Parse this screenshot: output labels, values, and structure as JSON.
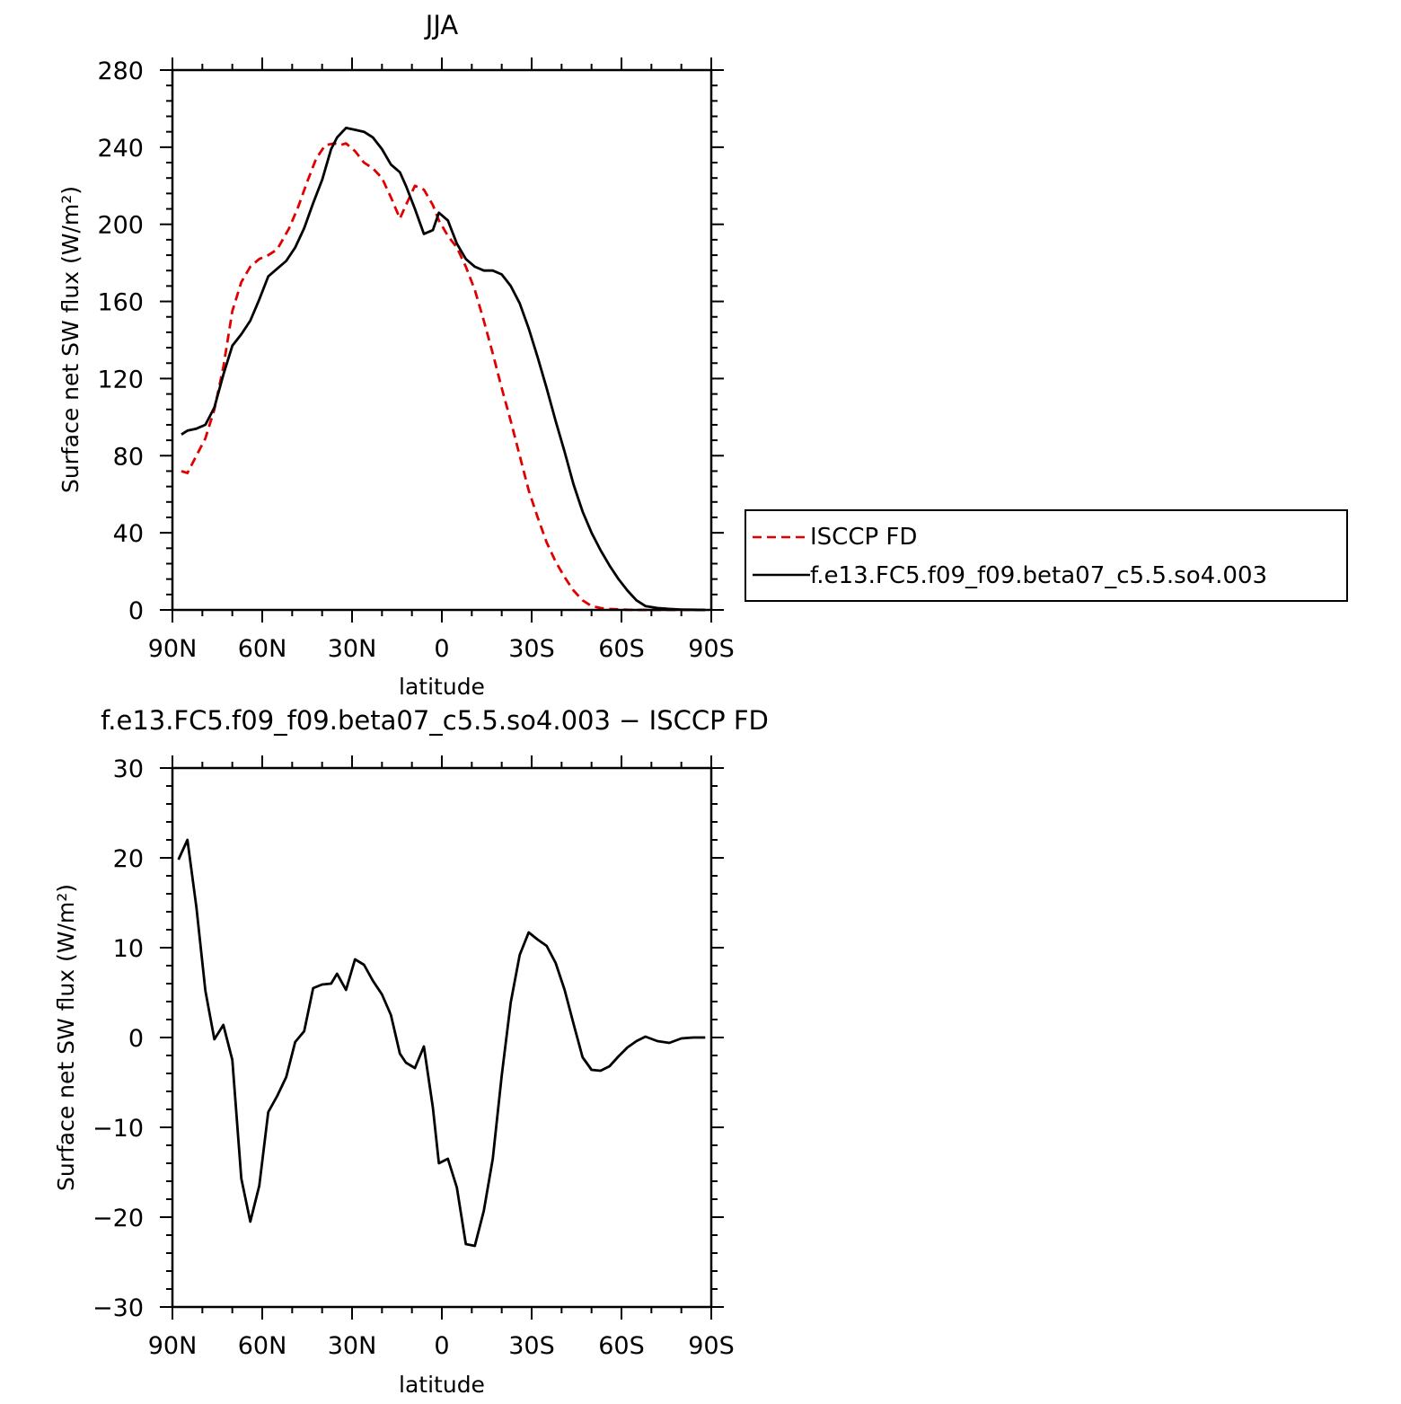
{
  "chart_data": [
    {
      "type": "line",
      "title": "JJA",
      "xlabel": "latitude",
      "ylabel": "Surface net SW flux (W/m²)",
      "x_ticks": [
        {
          "value": 90,
          "label": "90N"
        },
        {
          "value": 60,
          "label": "60N"
        },
        {
          "value": 30,
          "label": "30N"
        },
        {
          "value": 0,
          "label": "0"
        },
        {
          "value": -30,
          "label": "30S"
        },
        {
          "value": -60,
          "label": "60S"
        },
        {
          "value": -90,
          "label": "90S"
        }
      ],
      "y_ticks": [
        {
          "value": 0,
          "label": "0"
        },
        {
          "value": 40,
          "label": "40"
        },
        {
          "value": 80,
          "label": "80"
        },
        {
          "value": 120,
          "label": "120"
        },
        {
          "value": 160,
          "label": "160"
        },
        {
          "value": 200,
          "label": "200"
        },
        {
          "value": 240,
          "label": "240"
        },
        {
          "value": 280,
          "label": "280"
        }
      ],
      "xlim": [
        90,
        -90
      ],
      "ylim": [
        0,
        280
      ],
      "grid": false,
      "legend": "right",
      "series": [
        {
          "name": "ISCCP FD",
          "color": "#e00000",
          "dash": "dashed",
          "x": [
            87,
            85,
            79,
            76,
            73,
            70,
            67,
            64,
            61,
            58,
            55,
            51,
            48,
            45,
            42,
            39,
            36,
            34,
            32,
            29,
            26,
            23,
            20,
            17,
            14,
            12,
            9,
            6,
            3,
            1,
            -2,
            -5,
            -8,
            -11,
            -14,
            -17,
            -20,
            -23,
            -26,
            -29,
            -32,
            -35,
            -38,
            -41,
            -44,
            -47,
            -50,
            -53,
            -56,
            -59,
            -62,
            -65,
            -68,
            -72,
            -76,
            -80,
            -84,
            -88
          ],
          "y": [
            72,
            71,
            89,
            104,
            126,
            155,
            170,
            178,
            182,
            184,
            187,
            198,
            209,
            222,
            234,
            241,
            242,
            241,
            242,
            238,
            232,
            229,
            224,
            214,
            203,
            210,
            220,
            218,
            210,
            202,
            194,
            188,
            178,
            166,
            150,
            133,
            115,
            98,
            80,
            62,
            48,
            35,
            25,
            17,
            10,
            5,
            2,
            1,
            0.5,
            0.3,
            0.1,
            0.05,
            0.02,
            0,
            0,
            0,
            0,
            0
          ]
        },
        {
          "name": "f.e13.FC5.f09_f09.beta07_c5.5.so4.003",
          "color": "#000000",
          "dash": "solid",
          "x": [
            87,
            85,
            82,
            79,
            76,
            73,
            70,
            67,
            64,
            61,
            58,
            55,
            52,
            49,
            46,
            43,
            40,
            37,
            35,
            32,
            29,
            26,
            23,
            20,
            17,
            14,
            12,
            9,
            6,
            3,
            1,
            -2,
            -5,
            -8,
            -11,
            -14,
            -17,
            -20,
            -23,
            -26,
            -29,
            -32,
            -35,
            -38,
            -41,
            -44,
            -47,
            -50,
            -53,
            -56,
            -59,
            -62,
            -65,
            -68,
            -72,
            -76,
            -80,
            -84,
            -88
          ],
          "y": [
            91,
            93,
            94,
            96,
            105,
            122,
            137,
            143,
            150,
            161,
            173,
            177,
            181,
            188,
            198,
            211,
            223,
            239,
            245,
            250,
            249,
            248,
            245,
            239,
            231,
            227,
            220,
            208,
            195,
            197,
            206,
            202,
            190,
            182,
            178,
            176,
            176,
            174,
            168,
            159,
            146,
            131,
            115,
            98,
            82,
            65,
            51,
            40,
            31,
            23,
            16,
            10,
            5,
            2,
            1,
            0.5,
            0.2,
            0.1,
            0
          ]
        }
      ]
    },
    {
      "type": "line",
      "title": "f.e13.FC5.f09_f09.beta07_c5.5.so4.003 − ISCCP FD",
      "xlabel": "latitude",
      "ylabel": "Surface net SW flux (W/m²)",
      "x_ticks": [
        {
          "value": 90,
          "label": "90N"
        },
        {
          "value": 60,
          "label": "60N"
        },
        {
          "value": 30,
          "label": "30N"
        },
        {
          "value": 0,
          "label": "0"
        },
        {
          "value": -30,
          "label": "30S"
        },
        {
          "value": -60,
          "label": "60S"
        },
        {
          "value": -90,
          "label": "90S"
        }
      ],
      "y_ticks": [
        {
          "value": -30,
          "label": "−30"
        },
        {
          "value": -20,
          "label": "−20"
        },
        {
          "value": -10,
          "label": "−10"
        },
        {
          "value": 0,
          "label": "0"
        },
        {
          "value": 10,
          "label": "10"
        },
        {
          "value": 20,
          "label": "20"
        },
        {
          "value": 30,
          "label": "30"
        }
      ],
      "xlim": [
        90,
        -90
      ],
      "ylim": [
        -30,
        30
      ],
      "grid": false,
      "series": [
        {
          "color": "#000000",
          "dash": "solid",
          "x": [
            88,
            85,
            82,
            79,
            76,
            73,
            70,
            67,
            64,
            61,
            58,
            55,
            52,
            49,
            46,
            43,
            40,
            37,
            35,
            32,
            29,
            26,
            23,
            20,
            17,
            14,
            12,
            9,
            6,
            3,
            1,
            -2,
            -5,
            -8,
            -11,
            -14,
            -17,
            -20,
            -23,
            -26,
            -29,
            -32,
            -35,
            -38,
            -41,
            -44,
            -47,
            -50,
            -53,
            -56,
            -59,
            -62,
            -65,
            -68,
            -72,
            -76,
            -80,
            -84,
            -88
          ],
          "y": [
            19.8,
            22,
            14.5,
            5.2,
            -0.2,
            1.4,
            -2.5,
            -15.7,
            -20.5,
            -16.5,
            -8.3,
            -6.5,
            -4.4,
            -0.5,
            0.7,
            5.5,
            5.9,
            6,
            7.1,
            5.3,
            8.7,
            8.1,
            6.3,
            4.8,
            2.5,
            -1.8,
            -2.8,
            -3.4,
            -1,
            -7.8,
            -14,
            -13.5,
            -16.7,
            -23,
            -23.2,
            -19.3,
            -13.5,
            -4.2,
            3.9,
            9.2,
            11.7,
            10.9,
            10.2,
            8.3,
            5.3,
            1.5,
            -2.2,
            -3.6,
            -3.7,
            -3.2,
            -2.1,
            -1.1,
            -0.4,
            0.1,
            -0.4,
            -0.6,
            -0.1,
            0,
            0
          ]
        }
      ]
    }
  ]
}
